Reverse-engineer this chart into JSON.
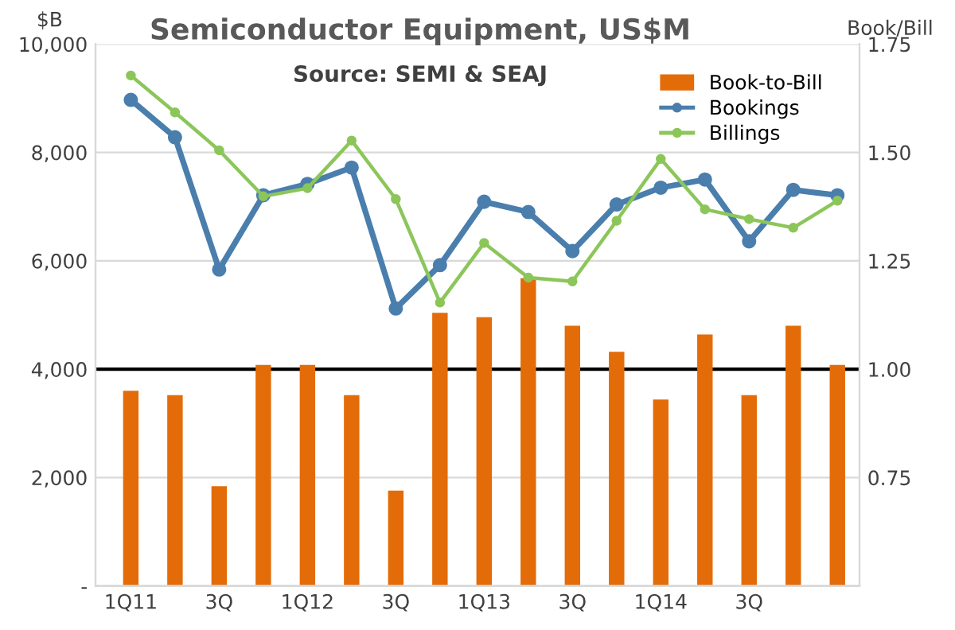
{
  "chart_data": {
    "type": "line",
    "title": "Semiconductor Equipment, US$M",
    "subtitle": "Source: SEMI & SEAJ",
    "ylabel": "$B",
    "y2label": "Book/Bill",
    "categories": [
      "1Q11",
      null,
      "3Q",
      null,
      "1Q12",
      null,
      "3Q",
      null,
      "1Q13",
      null,
      "3Q",
      null,
      "1Q14",
      null,
      "3Q",
      null,
      null
    ],
    "series": [
      {
        "name": "Book-to-Bill",
        "type": "bar",
        "axis": "y2",
        "color": "#e36c09",
        "values": [
          0.95,
          0.94,
          0.73,
          1.01,
          1.01,
          0.94,
          0.72,
          1.13,
          1.12,
          1.21,
          1.1,
          1.04,
          0.93,
          1.08,
          0.94,
          1.1,
          1.01
        ]
      },
      {
        "name": "Bookings",
        "color": "#4a7ead",
        "values": [
          8970,
          8280,
          5840,
          7210,
          7420,
          7720,
          5120,
          5920,
          7090,
          6900,
          6180,
          7040,
          7350,
          7500,
          6360,
          7310,
          7210
        ]
      },
      {
        "name": "Billings",
        "color": "#8cc65a",
        "values": [
          9420,
          8740,
          8040,
          7190,
          7340,
          8220,
          7140,
          5230,
          6330,
          5690,
          5620,
          6740,
          7880,
          6950,
          6770,
          6610,
          7110
        ]
      }
    ],
    "ylim": [
      0,
      10000
    ],
    "yticks": [
      {
        "value": 0,
        "label": "-"
      },
      {
        "value": 2000,
        "label": "2,000"
      },
      {
        "value": 4000,
        "label": "4,000"
      },
      {
        "value": 6000,
        "label": "6,000"
      },
      {
        "value": 8000,
        "label": "8,000"
      },
      {
        "value": 10000,
        "label": "10,000"
      }
    ],
    "y2lim": [
      0.5,
      1.75
    ],
    "y2ticks": [
      {
        "value": 0.5,
        "label": null
      },
      {
        "value": 0.75,
        "label": "0.75"
      },
      {
        "value": 1.0,
        "label": "1.00"
      },
      {
        "value": 1.25,
        "label": "1.25"
      },
      {
        "value": 1.5,
        "label": "1.50"
      },
      {
        "value": 1.75,
        "label": "1.75"
      }
    ],
    "ref_lines": [
      {
        "axis": "y2",
        "value": 1.0,
        "color": "#000000"
      }
    ],
    "grid": "y",
    "legend": "top right",
    "marker": "circle",
    "line_style": "solid"
  }
}
